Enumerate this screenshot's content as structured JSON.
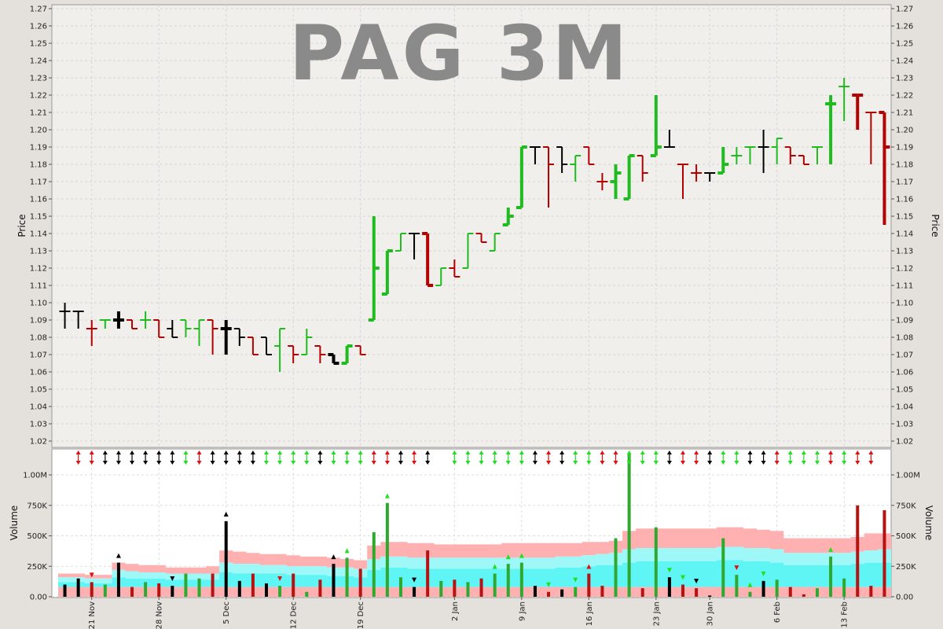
{
  "chart_data": {
    "type": "ohlc",
    "title": "PAG 3M",
    "price_axis": {
      "label": "Price",
      "min": 1.02,
      "max": 1.27,
      "ticks": [
        "1.02",
        "1.03",
        "1.04",
        "1.05",
        "1.06",
        "1.07",
        "1.08",
        "1.09",
        "1.10",
        "1.11",
        "1.12",
        "1.13",
        "1.14",
        "1.15",
        "1.16",
        "1.17",
        "1.18",
        "1.19",
        "1.20",
        "1.21",
        "1.22",
        "1.23",
        "1.24",
        "1.25",
        "1.26",
        "1.27"
      ]
    },
    "volume_axis": {
      "label": "Volume",
      "max": 1200000,
      "ticks": [
        {
          "v": 0,
          "label": "0.00"
        },
        {
          "v": 250000,
          "label": "250K"
        },
        {
          "v": 500000,
          "label": "500K"
        },
        {
          "v": 750000,
          "label": "750K"
        },
        {
          "v": 1000000,
          "label": "1.00M"
        }
      ]
    },
    "date_labels": [
      {
        "i": 2,
        "label": "21 Nov"
      },
      {
        "i": 7,
        "label": "28 Nov"
      },
      {
        "i": 12,
        "label": "5 Dec"
      },
      {
        "i": 17,
        "label": "12 Dec"
      },
      {
        "i": 22,
        "label": "19 Dec"
      },
      {
        "i": 29,
        "label": "2 Jan"
      },
      {
        "i": 34,
        "label": "9 Jan"
      },
      {
        "i": 39,
        "label": "16 Jan"
      },
      {
        "i": 44,
        "label": "23 Jan"
      },
      {
        "i": 48,
        "label": "30 Jan"
      },
      {
        "i": 53,
        "label": "6 Feb"
      },
      {
        "i": 58,
        "label": "13 Feb"
      }
    ],
    "colors": {
      "up": "#1fbb1f",
      "down": "#b30000",
      "flat": "#000000",
      "band_pink": "#ffb0b0",
      "band_cyan": "#5ff5f5",
      "band_cyan_light": "#9ff8f8",
      "bar_green": "#2ea82e",
      "bar_red": "#b51212",
      "bar_black": "#000000"
    },
    "bars": [
      {
        "o": 1.095,
        "h": 1.1,
        "l": 1.085,
        "c": 1.095,
        "v": 100000,
        "t": "flat"
      },
      {
        "o": 1.095,
        "h": 1.095,
        "l": 1.085,
        "c": 1.095,
        "v": 150000,
        "t": "flat"
      },
      {
        "o": 1.085,
        "h": 1.09,
        "l": 1.075,
        "c": 1.085,
        "v": 120000,
        "t": "down"
      },
      {
        "o": 1.09,
        "h": 1.09,
        "l": 1.085,
        "c": 1.09,
        "v": 100000,
        "t": "up"
      },
      {
        "o": 1.09,
        "h": 1.095,
        "l": 1.085,
        "c": 1.09,
        "v": 280000,
        "t": "flat"
      },
      {
        "o": 1.09,
        "h": 1.09,
        "l": 1.085,
        "c": 1.085,
        "v": 80000,
        "t": "down"
      },
      {
        "o": 1.09,
        "h": 1.095,
        "l": 1.085,
        "c": 1.09,
        "v": 120000,
        "t": "up"
      },
      {
        "o": 1.09,
        "h": 1.09,
        "l": 1.08,
        "c": 1.08,
        "v": 110000,
        "t": "down"
      },
      {
        "o": 1.085,
        "h": 1.09,
        "l": 1.08,
        "c": 1.08,
        "v": 90000,
        "t": "flat"
      },
      {
        "o": 1.09,
        "h": 1.09,
        "l": 1.08,
        "c": 1.085,
        "v": 190000,
        "t": "up"
      },
      {
        "o": 1.085,
        "h": 1.09,
        "l": 1.075,
        "c": 1.09,
        "v": 150000,
        "t": "up"
      },
      {
        "o": 1.09,
        "h": 1.09,
        "l": 1.07,
        "c": 1.085,
        "v": 190000,
        "t": "down"
      },
      {
        "o": 1.085,
        "h": 1.09,
        "l": 1.07,
        "c": 1.085,
        "v": 620000,
        "t": "flat"
      },
      {
        "o": 1.085,
        "h": 1.085,
        "l": 1.075,
        "c": 1.08,
        "v": 130000,
        "t": "flat"
      },
      {
        "o": 1.08,
        "h": 1.08,
        "l": 1.07,
        "c": 1.07,
        "v": 190000,
        "t": "down"
      },
      {
        "o": 1.08,
        "h": 1.08,
        "l": 1.07,
        "c": 1.07,
        "v": 110000,
        "t": "flat"
      },
      {
        "o": 1.075,
        "h": 1.085,
        "l": 1.06,
        "c": 1.085,
        "v": 90000,
        "t": "up"
      },
      {
        "o": 1.075,
        "h": 1.075,
        "l": 1.065,
        "c": 1.07,
        "v": 190000,
        "t": "down"
      },
      {
        "o": 1.07,
        "h": 1.085,
        "l": 1.07,
        "c": 1.08,
        "v": 40000,
        "t": "up"
      },
      {
        "o": 1.075,
        "h": 1.075,
        "l": 1.065,
        "c": 1.07,
        "v": 140000,
        "t": "down"
      },
      {
        "o": 1.07,
        "h": 1.07,
        "l": 1.065,
        "c": 1.065,
        "v": 270000,
        "t": "flat"
      },
      {
        "o": 1.065,
        "h": 1.075,
        "l": 1.065,
        "c": 1.075,
        "v": 320000,
        "t": "up"
      },
      {
        "o": 1.075,
        "h": 1.075,
        "l": 1.07,
        "c": 1.07,
        "v": 230000,
        "t": "down"
      },
      {
        "o": 1.09,
        "h": 1.15,
        "l": 1.09,
        "c": 1.12,
        "v": 530000,
        "t": "up"
      },
      {
        "o": 1.105,
        "h": 1.13,
        "l": 1.105,
        "c": 1.13,
        "v": 770000,
        "t": "up"
      },
      {
        "o": 1.13,
        "h": 1.14,
        "l": 1.13,
        "c": 1.14,
        "v": 160000,
        "t": "up"
      },
      {
        "o": 1.14,
        "h": 1.14,
        "l": 1.125,
        "c": 1.14,
        "v": 80000,
        "t": "flat"
      },
      {
        "o": 1.14,
        "h": 1.14,
        "l": 1.11,
        "c": 1.11,
        "v": 380000,
        "t": "down"
      },
      {
        "o": 1.11,
        "h": 1.12,
        "l": 1.11,
        "c": 1.12,
        "v": 130000,
        "t": "up"
      },
      {
        "o": 1.12,
        "h": 1.125,
        "l": 1.115,
        "c": 1.115,
        "v": 140000,
        "t": "down"
      },
      {
        "o": 1.12,
        "h": 1.14,
        "l": 1.12,
        "c": 1.14,
        "v": 120000,
        "t": "up"
      },
      {
        "o": 1.14,
        "h": 1.14,
        "l": 1.135,
        "c": 1.135,
        "v": 150000,
        "t": "down"
      },
      {
        "o": 1.13,
        "h": 1.14,
        "l": 1.13,
        "c": 1.14,
        "v": 190000,
        "t": "up"
      },
      {
        "o": 1.145,
        "h": 1.155,
        "l": 1.145,
        "c": 1.15,
        "v": 270000,
        "t": "up"
      },
      {
        "o": 1.155,
        "h": 1.19,
        "l": 1.155,
        "c": 1.19,
        "v": 280000,
        "t": "up"
      },
      {
        "o": 1.19,
        "h": 1.19,
        "l": 1.18,
        "c": 1.19,
        "v": 90000,
        "t": "flat"
      },
      {
        "o": 1.19,
        "h": 1.19,
        "l": 1.155,
        "c": 1.18,
        "v": 40000,
        "t": "down"
      },
      {
        "o": 1.19,
        "h": 1.19,
        "l": 1.175,
        "c": 1.18,
        "v": 60000,
        "t": "flat"
      },
      {
        "o": 1.18,
        "h": 1.185,
        "l": 1.17,
        "c": 1.185,
        "v": 80000,
        "t": "up"
      },
      {
        "o": 1.19,
        "h": 1.19,
        "l": 1.18,
        "c": 1.18,
        "v": 190000,
        "t": "down"
      },
      {
        "o": 1.17,
        "h": 1.175,
        "l": 1.165,
        "c": 1.17,
        "v": 90000,
        "t": "down"
      },
      {
        "o": 1.17,
        "h": 1.18,
        "l": 1.16,
        "c": 1.175,
        "v": 480000,
        "t": "up"
      },
      {
        "o": 1.16,
        "h": 1.185,
        "l": 1.16,
        "c": 1.185,
        "v": 1170000,
        "t": "up"
      },
      {
        "o": 1.185,
        "h": 1.185,
        "l": 1.17,
        "c": 1.175,
        "v": 70000,
        "t": "down"
      },
      {
        "o": 1.185,
        "h": 1.22,
        "l": 1.185,
        "c": 1.19,
        "v": 570000,
        "t": "up"
      },
      {
        "o": 1.19,
        "h": 1.2,
        "l": 1.19,
        "c": 1.19,
        "v": 160000,
        "t": "flat"
      },
      {
        "o": 1.18,
        "h": 1.18,
        "l": 1.16,
        "c": 1.18,
        "v": 100000,
        "t": "down"
      },
      {
        "o": 1.175,
        "h": 1.18,
        "l": 1.17,
        "c": 1.175,
        "v": 70000,
        "t": "down"
      },
      {
        "o": 1.175,
        "h": 1.175,
        "l": 1.17,
        "c": 1.175,
        "v": 10000,
        "t": "flat"
      },
      {
        "o": 1.175,
        "h": 1.19,
        "l": 1.175,
        "c": 1.18,
        "v": 480000,
        "t": "up"
      },
      {
        "o": 1.185,
        "h": 1.19,
        "l": 1.18,
        "c": 1.185,
        "v": 180000,
        "t": "up"
      },
      {
        "o": 1.19,
        "h": 1.19,
        "l": 1.18,
        "c": 1.19,
        "v": 40000,
        "t": "up"
      },
      {
        "o": 1.19,
        "h": 1.2,
        "l": 1.175,
        "c": 1.19,
        "v": 130000,
        "t": "flat"
      },
      {
        "o": 1.19,
        "h": 1.195,
        "l": 1.18,
        "c": 1.195,
        "v": 140000,
        "t": "up"
      },
      {
        "o": 1.19,
        "h": 1.19,
        "l": 1.18,
        "c": 1.185,
        "v": 80000,
        "t": "down"
      },
      {
        "o": 1.185,
        "h": 1.185,
        "l": 1.18,
        "c": 1.18,
        "v": 20000,
        "t": "down"
      },
      {
        "o": 1.19,
        "h": 1.19,
        "l": 1.18,
        "c": 1.19,
        "v": 70000,
        "t": "up"
      },
      {
        "o": 1.215,
        "h": 1.22,
        "l": 1.18,
        "c": 1.215,
        "v": 330000,
        "t": "up"
      },
      {
        "o": 1.225,
        "h": 1.23,
        "l": 1.205,
        "c": 1.225,
        "v": 150000,
        "t": "up"
      },
      {
        "o": 1.22,
        "h": 1.22,
        "l": 1.2,
        "c": 1.22,
        "v": 750000,
        "t": "down"
      },
      {
        "o": 1.21,
        "h": 1.21,
        "l": 1.18,
        "c": 1.21,
        "v": 90000,
        "t": "down"
      },
      {
        "o": 1.21,
        "h": 1.21,
        "l": 1.145,
        "c": 1.19,
        "v": 710000,
        "t": "down"
      }
    ],
    "band_pink": [
      190000,
      190000,
      180000,
      180000,
      280000,
      270000,
      260000,
      260000,
      240000,
      240000,
      240000,
      250000,
      380000,
      370000,
      360000,
      350000,
      350000,
      340000,
      330000,
      330000,
      320000,
      310000,
      300000,
      420000,
      450000,
      450000,
      440000,
      440000,
      430000,
      430000,
      430000,
      430000,
      430000,
      440000,
      440000,
      440000,
      440000,
      440000,
      440000,
      450000,
      450000,
      460000,
      540000,
      560000,
      560000,
      560000,
      560000,
      560000,
      560000,
      570000,
      570000,
      560000,
      550000,
      540000,
      480000,
      480000,
      480000,
      480000,
      480000,
      490000,
      520000,
      520000,
      540000
    ],
    "band_cyan": [
      160000,
      160000,
      150000,
      150000,
      220000,
      210000,
      200000,
      200000,
      190000,
      190000,
      190000,
      190000,
      280000,
      270000,
      270000,
      260000,
      260000,
      250000,
      250000,
      250000,
      240000,
      240000,
      230000,
      310000,
      330000,
      330000,
      320000,
      320000,
      320000,
      320000,
      320000,
      320000,
      320000,
      320000,
      320000,
      320000,
      320000,
      330000,
      330000,
      340000,
      350000,
      360000,
      390000,
      400000,
      400000,
      400000,
      400000,
      400000,
      400000,
      410000,
      410000,
      400000,
      400000,
      390000,
      360000,
      360000,
      360000,
      360000,
      360000,
      370000,
      380000,
      390000,
      400000
    ],
    "band_cyan2": [
      120000,
      120000,
      110000,
      110000,
      160000,
      150000,
      150000,
      150000,
      140000,
      140000,
      140000,
      140000,
      200000,
      190000,
      190000,
      190000,
      190000,
      180000,
      180000,
      180000,
      170000,
      170000,
      160000,
      220000,
      240000,
      240000,
      230000,
      230000,
      230000,
      230000,
      230000,
      230000,
      230000,
      230000,
      230000,
      230000,
      230000,
      240000,
      240000,
      250000,
      260000,
      260000,
      280000,
      290000,
      290000,
      290000,
      290000,
      290000,
      290000,
      300000,
      300000,
      290000,
      290000,
      280000,
      260000,
      260000,
      260000,
      260000,
      260000,
      270000,
      280000,
      280000,
      290000
    ],
    "band_base": [
      80000,
      80000,
      80000,
      80000,
      80000,
      80000,
      80000,
      80000,
      80000,
      80000,
      80000,
      80000,
      80000,
      80000,
      80000,
      80000,
      80000,
      80000,
      80000,
      80000,
      80000,
      80000,
      80000,
      80000,
      80000,
      80000,
      80000,
      80000,
      80000,
      80000,
      80000,
      80000,
      80000,
      80000,
      80000,
      80000,
      80000,
      80000,
      80000,
      80000,
      80000,
      80000,
      80000,
      80000,
      80000,
      80000,
      80000,
      80000,
      80000,
      80000,
      80000,
      80000,
      80000,
      80000,
      80000,
      80000,
      80000,
      80000,
      80000,
      80000,
      80000,
      80000,
      80000
    ],
    "signals_top": [
      "",
      "rd",
      "rd",
      "bk",
      "bk",
      "bk",
      "bk",
      "bk",
      "bk",
      "gr",
      "rd",
      "bk",
      "bk",
      "bk",
      "bk",
      "gr",
      "gr",
      "gr",
      "gr",
      "bk",
      "gr",
      "gr",
      "gr",
      "rd",
      "rd",
      "bk",
      "rd",
      "bk",
      "",
      "gr",
      "gr",
      "gr",
      "gr",
      "gr",
      "gr",
      "bk",
      "rd",
      "bk",
      "gr",
      "gr",
      "rd",
      "rd",
      "gr",
      "gr",
      "gr",
      "bk",
      "rd",
      "rd",
      "bk",
      "gr",
      "gr",
      "bk",
      "bk",
      "rd",
      "gr",
      "gr",
      "gr",
      "rd",
      "gr",
      "rd",
      "rd",
      "",
      ""
    ],
    "marks": [
      {
        "i": 2,
        "dir": "down",
        "t": "down"
      },
      {
        "i": 4,
        "dir": "up",
        "t": "flat"
      },
      {
        "i": 8,
        "dir": "down",
        "t": "flat"
      },
      {
        "i": 12,
        "dir": "up",
        "t": "flat"
      },
      {
        "i": 16,
        "dir": "down",
        "t": "down"
      },
      {
        "i": 20,
        "dir": "up",
        "t": "flat"
      },
      {
        "i": 21,
        "dir": "up",
        "t": "up"
      },
      {
        "i": 24,
        "dir": "up",
        "t": "up"
      },
      {
        "i": 26,
        "dir": "down",
        "t": "flat"
      },
      {
        "i": 32,
        "dir": "up",
        "t": "up"
      },
      {
        "i": 33,
        "dir": "up",
        "t": "up"
      },
      {
        "i": 34,
        "dir": "up",
        "t": "up"
      },
      {
        "i": 36,
        "dir": "down",
        "t": "up"
      },
      {
        "i": 38,
        "dir": "down",
        "t": "up"
      },
      {
        "i": 39,
        "dir": "up",
        "t": "down"
      },
      {
        "i": 45,
        "dir": "down",
        "t": "up"
      },
      {
        "i": 46,
        "dir": "down",
        "t": "up"
      },
      {
        "i": 47,
        "dir": "down",
        "t": "flat"
      },
      {
        "i": 50,
        "dir": "down",
        "t": "down"
      },
      {
        "i": 51,
        "dir": "up",
        "t": "up"
      },
      {
        "i": 52,
        "dir": "down",
        "t": "up"
      },
      {
        "i": 57,
        "dir": "up",
        "t": "up"
      }
    ]
  }
}
